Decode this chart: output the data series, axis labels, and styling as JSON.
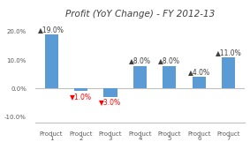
{
  "title": "Profit (YoY Change) - FY 2012-13",
  "categories": [
    "Product\n1",
    "Product\n2",
    "Product\n3",
    "Product\n4",
    "Product\n5",
    "Product\n6",
    "Product\n7"
  ],
  "values": [
    19.0,
    -1.0,
    -3.0,
    8.0,
    8.0,
    4.0,
    11.0
  ],
  "bar_color": "#5b9bd5",
  "positive_label_color": "#404040",
  "negative_label_color": "#ff0000",
  "ylim": [
    -12.0,
    24.0
  ],
  "yticks": [
    -10.0,
    0.0,
    10.0,
    20.0
  ],
  "ytick_labels": [
    "-10.0%",
    "0.0%",
    "10.0%",
    "20.0%"
  ],
  "background_color": "#ffffff",
  "title_fontsize": 7.5,
  "label_fontsize": 5.5,
  "tick_fontsize": 5.0,
  "bar_width": 0.45
}
